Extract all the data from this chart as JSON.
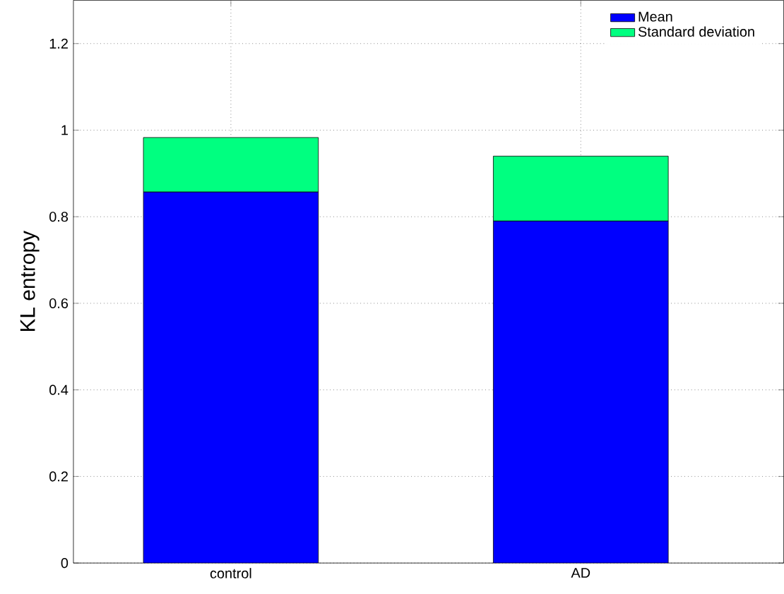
{
  "chart_data": {
    "type": "bar",
    "stacked": true,
    "ylabel": "KL entropy",
    "categories": [
      "control",
      "AD"
    ],
    "series": [
      {
        "name": "Mean",
        "color": "#0000ff",
        "values": [
          0.857,
          0.79
        ]
      },
      {
        "name": "Standard deviation",
        "color": "#00ff80",
        "values": [
          0.126,
          0.15
        ]
      }
    ],
    "ylim": [
      0,
      1.3
    ],
    "yticks": [
      0,
      0.2,
      0.4,
      0.6,
      0.8,
      1,
      1.2
    ],
    "grid": true,
    "legend": "top right"
  }
}
